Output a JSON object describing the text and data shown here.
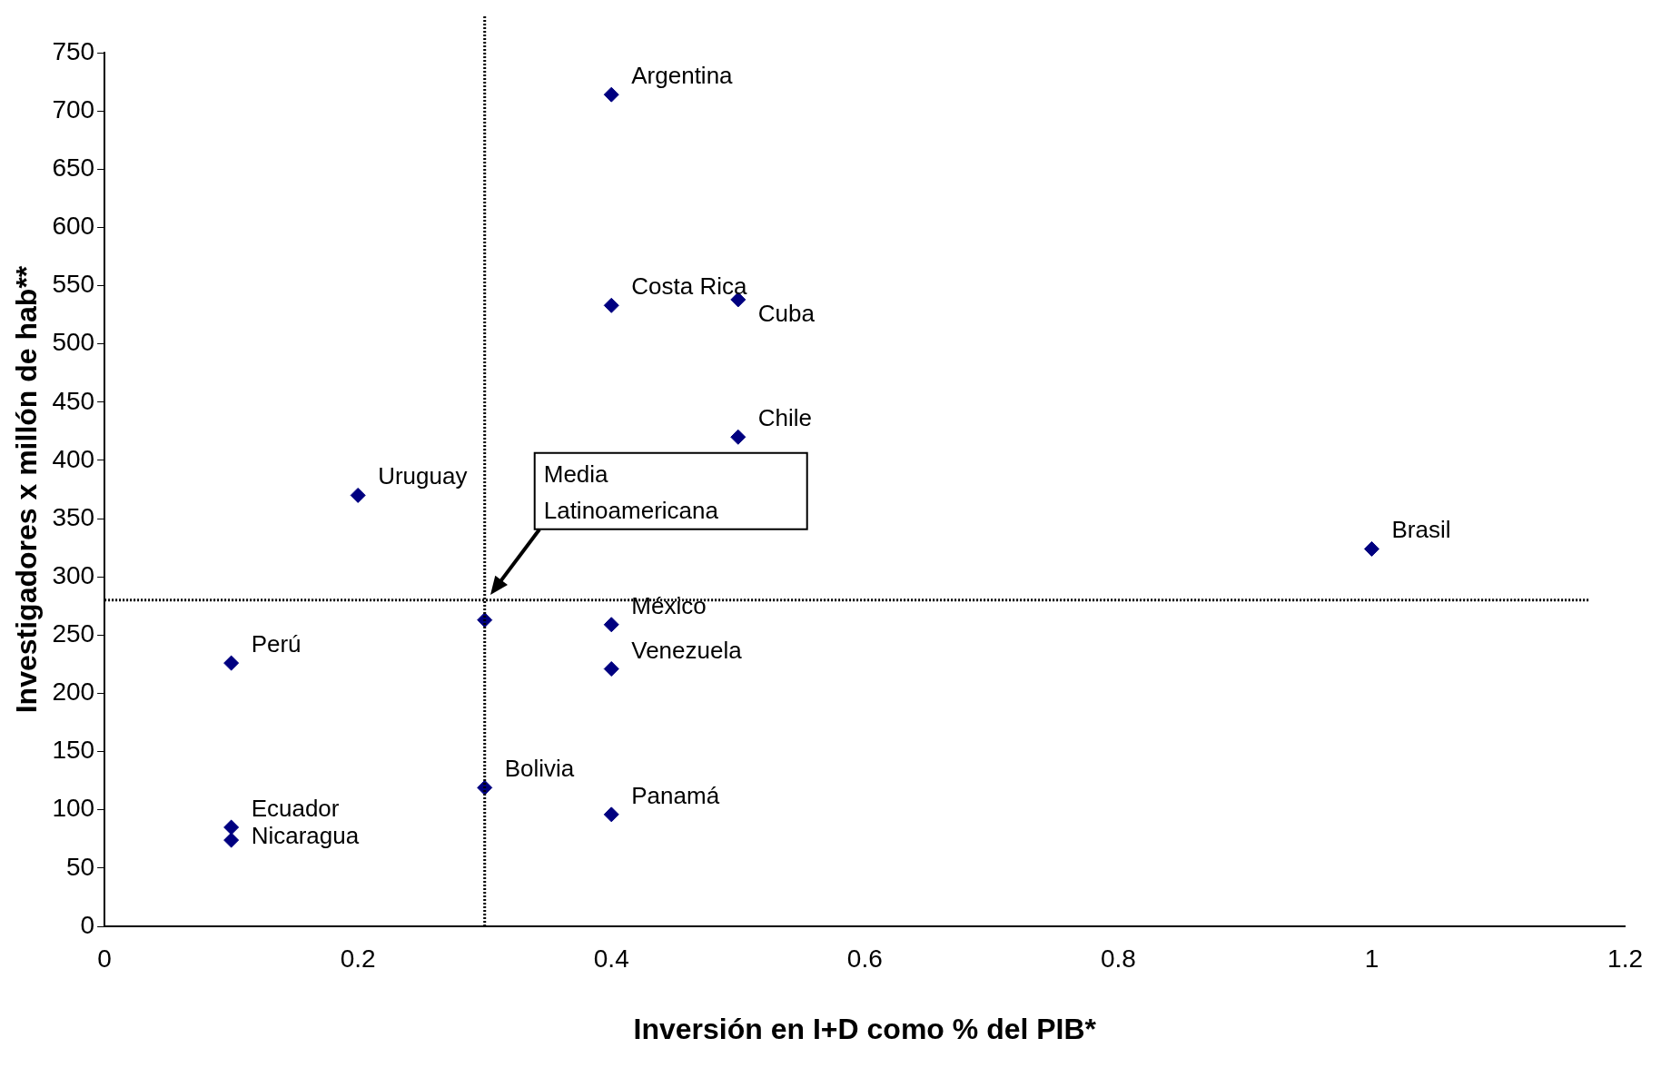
{
  "chart_data": {
    "type": "scatter",
    "xlabel": "Inversión en I+D como % del PIB*",
    "ylabel": "Investigadores x millón de hab**",
    "x": [
      0.4,
      0.4,
      0.5,
      0.5,
      0.2,
      1.0,
      0.3,
      0.4,
      0.4,
      0.1,
      0.3,
      0.4,
      0.1,
      0.1
    ],
    "series": [
      {
        "color": "#000080",
        "values": [
          714,
          533,
          538,
          420,
          370,
          324,
          263,
          259,
          221,
          226,
          119,
          96,
          85,
          74
        ]
      }
    ],
    "xlim": [
      0,
      1.2
    ],
    "xticks": [
      0,
      0.2,
      0.4,
      0.6,
      0.8,
      1,
      1.2
    ],
    "ylim": [
      0,
      750
    ],
    "yticks": [
      0,
      50,
      100,
      150,
      200,
      250,
      300,
      350,
      400,
      450,
      500,
      550,
      600,
      650,
      700,
      750
    ],
    "grid": false,
    "legend": false,
    "marker": "diamond",
    "ref_lines": [
      {
        "axis": "x",
        "value": 0.3,
        "line_style": "dotted",
        "color": "#000000"
      },
      {
        "axis": "y",
        "value": 280,
        "line_style": "dotted",
        "color": "#000000"
      }
    ],
    "annotations": [
      {
        "text": "Argentina",
        "x": 0.4,
        "y": 714
      },
      {
        "text": "Costa Rica",
        "x": 0.4,
        "y": 533
      },
      {
        "text": "Cuba",
        "x": 0.5,
        "y": 538
      },
      {
        "text": "Chile",
        "x": 0.5,
        "y": 420
      },
      {
        "text": "Uruguay",
        "x": 0.2,
        "y": 370
      },
      {
        "text": "Brasil",
        "x": 1.0,
        "y": 324
      },
      {
        "text": "México",
        "x": 0.4,
        "y": 259
      },
      {
        "text": "Venezuela",
        "x": 0.4,
        "y": 221
      },
      {
        "text": "Perú",
        "x": 0.1,
        "y": 226
      },
      {
        "text": "Bolivia",
        "x": 0.3,
        "y": 119
      },
      {
        "text": "Panamá",
        "x": 0.4,
        "y": 96
      },
      {
        "text": "Ecuador",
        "x": 0.1,
        "y": 85
      },
      {
        "text": "Nicaragua",
        "x": 0.1,
        "y": 74
      },
      "Media Latinoamericana"
    ]
  }
}
